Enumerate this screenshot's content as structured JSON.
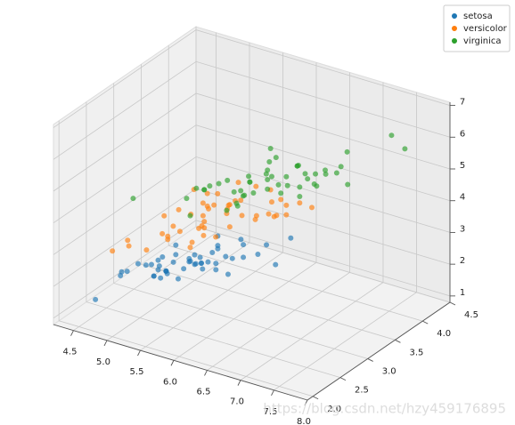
{
  "chart_data": {
    "type": "scatter3d",
    "xlim": [
      4.2,
      8.0
    ],
    "ylim": [
      1.9,
      4.5
    ],
    "zlim": [
      0.8,
      7.1
    ],
    "xticks": [
      4.5,
      {
        "value": 5,
        "label": "5.0"
      },
      5.5,
      {
        "value": 6,
        "label": "6.0"
      },
      6.5,
      {
        "value": 7,
        "label": "7.0"
      },
      7.5,
      {
        "value": 8,
        "label": "8.0"
      }
    ],
    "yticks": [
      {
        "value": 2,
        "label": "2.0"
      },
      2.5,
      {
        "value": 3,
        "label": "3.0"
      },
      3.5,
      {
        "value": 4,
        "label": "4.0"
      },
      4.5
    ],
    "zticks": [
      1,
      2,
      3,
      4,
      5,
      6,
      7
    ],
    "grid": true,
    "legend": "upper right",
    "watermark": "https://blog.csdn.net/hzy459176895",
    "series": [
      {
        "name": "setosa",
        "color": "#1f77b4",
        "x": [
          5.1,
          4.9,
          4.7,
          4.6,
          5.0,
          5.4,
          4.6,
          5.0,
          4.4,
          4.9,
          5.4,
          4.8,
          4.8,
          4.3,
          5.8,
          5.7,
          5.4,
          5.1,
          5.7,
          5.1,
          5.4,
          5.1,
          4.6,
          5.1,
          4.8,
          5.0,
          5.0,
          5.2,
          5.2,
          4.7,
          4.8,
          5.4,
          5.2,
          5.5,
          4.9,
          5.0,
          5.5,
          4.9,
          4.4,
          5.1,
          5.0,
          4.5,
          4.4,
          5.0,
          5.1,
          4.8,
          5.1,
          4.6,
          5.3,
          5.0
        ],
        "y": [
          3.5,
          3.0,
          3.2,
          3.1,
          3.6,
          3.9,
          3.4,
          3.4,
          2.9,
          3.1,
          3.7,
          3.4,
          3.0,
          3.0,
          4.0,
          4.4,
          3.9,
          3.5,
          3.8,
          3.8,
          3.4,
          3.7,
          3.6,
          3.3,
          3.4,
          3.0,
          3.4,
          3.5,
          3.4,
          3.2,
          3.1,
          3.4,
          4.1,
          4.2,
          3.1,
          3.2,
          3.5,
          3.1,
          3.0,
          3.4,
          3.5,
          2.3,
          3.2,
          3.5,
          3.8,
          3.0,
          3.8,
          3.2,
          3.7,
          3.3
        ],
        "z": [
          1.4,
          1.4,
          1.3,
          1.5,
          1.4,
          1.7,
          1.4,
          1.5,
          1.4,
          1.5,
          1.5,
          1.6,
          1.4,
          1.1,
          1.2,
          1.5,
          1.3,
          1.4,
          1.7,
          1.5,
          1.7,
          1.5,
          1.0,
          1.7,
          1.9,
          1.6,
          1.6,
          1.5,
          1.4,
          1.6,
          1.6,
          1.5,
          1.5,
          1.4,
          1.5,
          1.2,
          1.3,
          1.5,
          1.3,
          1.5,
          1.3,
          1.3,
          1.3,
          1.6,
          1.9,
          1.4,
          1.6,
          1.4,
          1.5,
          1.4
        ]
      },
      {
        "name": "versicolor",
        "color": "#ff7f0e",
        "x": [
          7.0,
          6.4,
          6.9,
          5.5,
          6.5,
          5.7,
          6.3,
          4.9,
          6.6,
          5.2,
          5.0,
          5.9,
          6.0,
          6.1,
          5.6,
          6.7,
          5.6,
          5.8,
          6.2,
          5.6,
          5.9,
          6.1,
          6.3,
          6.1,
          6.4,
          6.6,
          6.8,
          6.7,
          6.0,
          5.7,
          5.5,
          5.5,
          5.8,
          6.0,
          5.4,
          6.0,
          6.7,
          6.3,
          5.6,
          5.5,
          5.5,
          6.1,
          5.8,
          5.0,
          5.6,
          5.7,
          5.7,
          6.2,
          5.1,
          5.7
        ],
        "y": [
          3.2,
          3.2,
          3.1,
          2.3,
          2.8,
          2.8,
          3.3,
          2.4,
          2.9,
          2.7,
          2.0,
          3.0,
          2.2,
          2.9,
          2.9,
          3.1,
          3.0,
          2.7,
          2.2,
          2.5,
          3.2,
          2.8,
          2.5,
          2.8,
          2.9,
          3.0,
          2.8,
          3.0,
          2.9,
          2.6,
          2.4,
          2.4,
          2.7,
          2.7,
          3.0,
          3.4,
          3.1,
          2.3,
          3.0,
          2.5,
          2.6,
          3.0,
          2.6,
          2.3,
          2.7,
          3.0,
          2.9,
          2.9,
          2.5,
          2.8
        ],
        "z": [
          4.7,
          4.5,
          4.9,
          4.0,
          4.6,
          4.5,
          4.7,
          3.3,
          4.6,
          3.9,
          3.5,
          4.2,
          4.0,
          4.7,
          3.6,
          4.4,
          4.5,
          4.1,
          4.5,
          3.9,
          4.8,
          4.0,
          4.9,
          4.7,
          4.3,
          4.4,
          4.8,
          5.0,
          4.5,
          3.5,
          3.8,
          3.7,
          3.9,
          5.1,
          4.5,
          4.5,
          4.7,
          4.4,
          4.1,
          4.0,
          4.4,
          4.6,
          4.0,
          3.3,
          4.2,
          4.2,
          4.2,
          4.3,
          3.0,
          4.1
        ]
      },
      {
        "name": "virginica",
        "color": "#2ca02c",
        "x": [
          6.3,
          5.8,
          7.1,
          6.3,
          6.5,
          7.6,
          4.9,
          7.3,
          6.7,
          7.2,
          6.5,
          6.4,
          6.8,
          5.7,
          5.8,
          6.4,
          6.5,
          7.7,
          7.7,
          6.0,
          6.9,
          5.6,
          7.7,
          6.3,
          6.7,
          7.2,
          6.2,
          6.1,
          6.4,
          7.2,
          7.4,
          7.9,
          6.4,
          6.3,
          6.1,
          7.7,
          6.3,
          6.4,
          6.0,
          6.9,
          6.7,
          6.9,
          5.8,
          6.8,
          6.7,
          6.7,
          6.3,
          6.5,
          6.2,
          5.9
        ],
        "y": [
          3.3,
          2.7,
          3.0,
          2.9,
          3.0,
          3.0,
          2.5,
          2.9,
          2.5,
          3.6,
          3.2,
          2.7,
          3.0,
          2.5,
          2.8,
          3.2,
          3.0,
          3.8,
          2.6,
          2.2,
          3.2,
          2.8,
          2.8,
          2.7,
          3.3,
          3.2,
          2.8,
          3.0,
          2.8,
          3.0,
          2.8,
          3.8,
          2.8,
          2.8,
          2.6,
          3.0,
          3.4,
          3.1,
          3.0,
          3.1,
          3.1,
          3.1,
          2.7,
          3.2,
          3.3,
          3.0,
          2.5,
          3.0,
          3.4,
          3.0
        ],
        "z": [
          6.0,
          5.1,
          5.9,
          5.6,
          5.8,
          6.6,
          4.5,
          6.3,
          5.8,
          6.1,
          5.1,
          5.3,
          5.5,
          5.0,
          5.1,
          5.3,
          5.5,
          6.7,
          6.9,
          5.0,
          5.7,
          4.9,
          6.7,
          4.9,
          5.7,
          6.0,
          4.8,
          4.9,
          5.6,
          5.8,
          6.1,
          6.4,
          5.6,
          5.1,
          5.6,
          6.1,
          5.6,
          5.5,
          4.8,
          5.4,
          5.6,
          5.1,
          5.1,
          5.9,
          5.7,
          5.2,
          5.0,
          5.2,
          5.4,
          5.1
        ]
      }
    ]
  }
}
